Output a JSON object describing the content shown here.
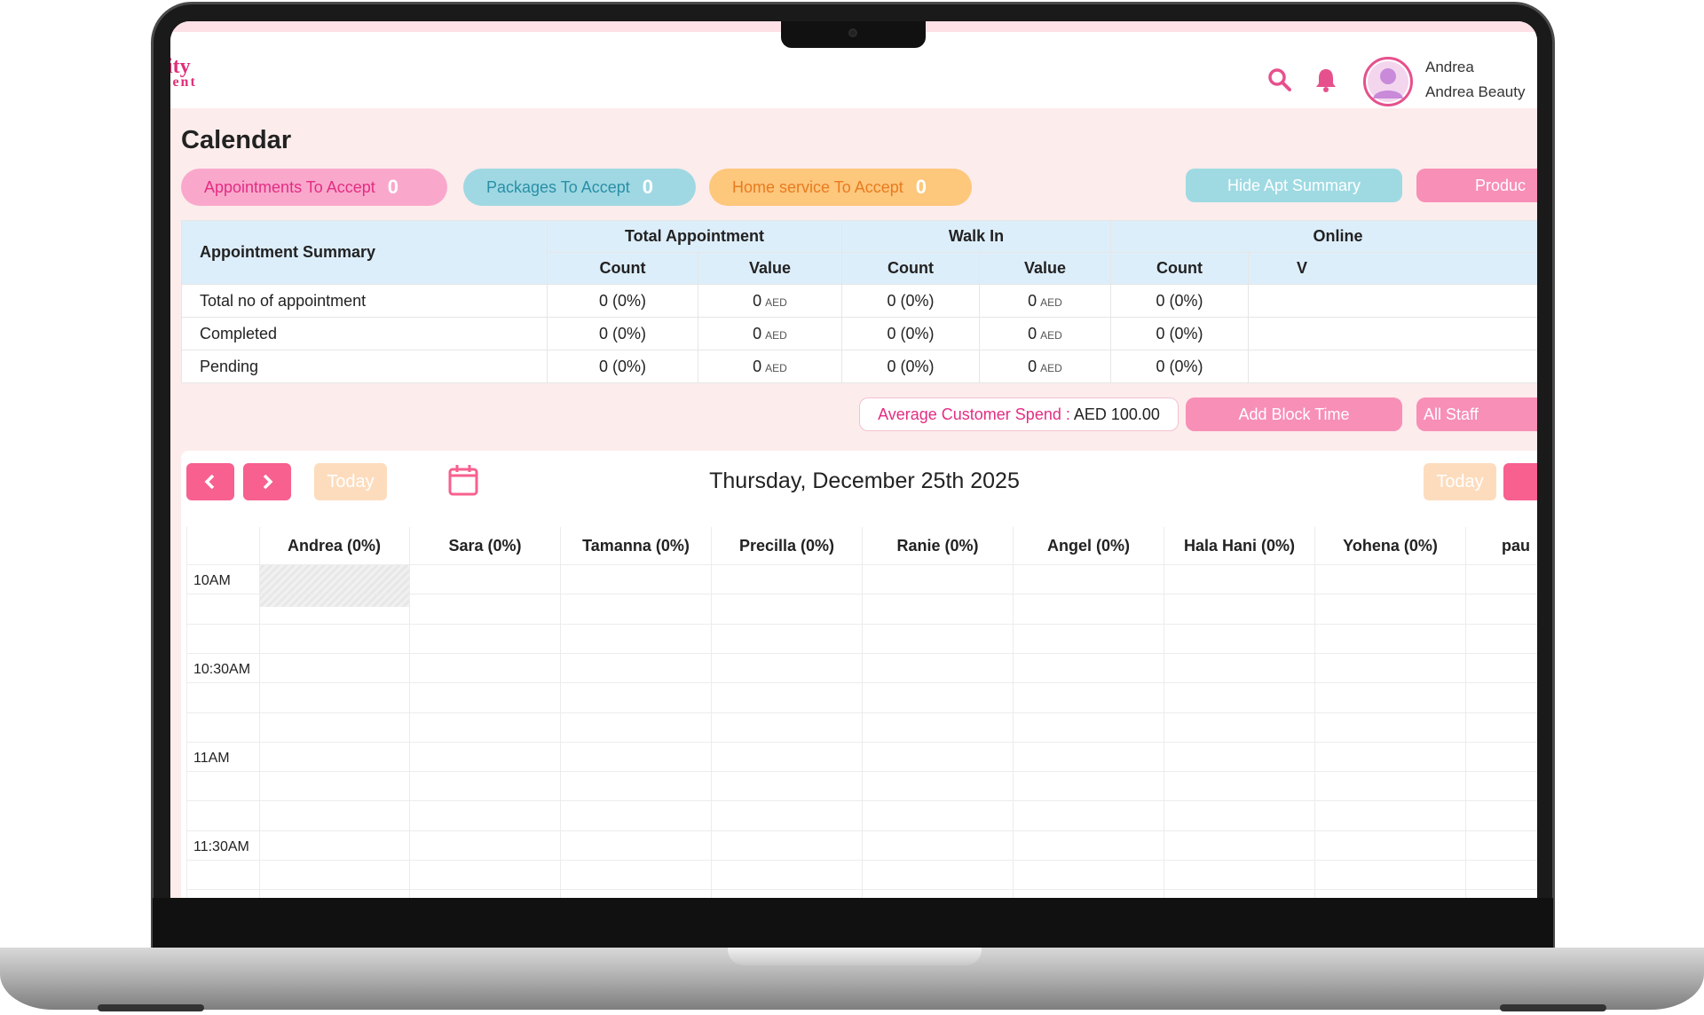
{
  "brand": {
    "line1": "ity",
    "line2": "ient"
  },
  "header": {
    "user_name": "Andrea",
    "business_name": "Andrea Beauty",
    "icons": [
      "search-icon",
      "bell-icon",
      "avatar-icon"
    ]
  },
  "page": {
    "title": "Calendar"
  },
  "pills": {
    "appointments_label": "Appointments To Accept",
    "appointments_count": "0",
    "packages_label": "Packages To Accept",
    "packages_count": "0",
    "home_label": "Home service To Accept",
    "home_count": "0"
  },
  "buttons": {
    "hide_summary": "Hide Apt Summary",
    "products": "Produc",
    "add_block": "Add Block Time",
    "all_staff": "All Staff",
    "today": "Today"
  },
  "summary": {
    "title": "Appointment Summary",
    "groups": [
      "Total Appointment",
      "Walk In",
      "Online"
    ],
    "sub": {
      "count": "Count",
      "value": "Value",
      "value_cut": "V"
    },
    "rows": [
      {
        "label": "Total no of appointment",
        "cells": [
          "0 (0%)",
          "0",
          "0 (0%)",
          "0",
          "0 (0%)"
        ]
      },
      {
        "label": "Completed",
        "cells": [
          "0 (0%)",
          "0",
          "0 (0%)",
          "0",
          "0 (0%)"
        ]
      },
      {
        "label": "Pending",
        "cells": [
          "0 (0%)",
          "0",
          "0 (0%)",
          "0",
          "0 (0%)"
        ]
      }
    ],
    "currency": "AED"
  },
  "avg_spend": {
    "label": "Average Customer Spend :",
    "value": "AED 100.00"
  },
  "calendar": {
    "date": "Thursday, December 25th 2025",
    "staff": [
      "Andrea (0%)",
      "Sara (0%)",
      "Tamanna (0%)",
      "Precilla (0%)",
      "Ranie (0%)",
      "Angel (0%)",
      "Hala Hani (0%)",
      "Yohena (0%)",
      "pau"
    ],
    "times": [
      "10AM",
      "10:30AM",
      "11AM",
      "11:30AM"
    ]
  },
  "colors": {
    "brand_pink": "#e32d83",
    "button_pink": "#f78fb7",
    "teal": "#9fd8e3",
    "orange": "#fdc77c",
    "bg": "#fdecec"
  }
}
